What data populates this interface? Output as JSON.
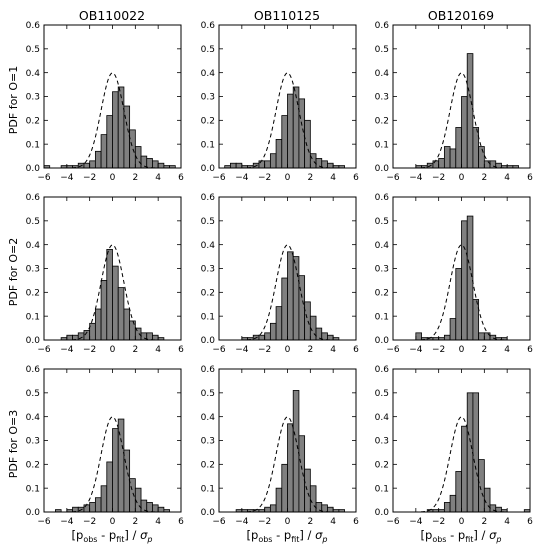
{
  "column_titles": [
    "OB110022",
    "OB110125",
    "OB120169"
  ],
  "row_labels": [
    "PDF for O=1",
    "PDF for O=2",
    "PDF for O=3"
  ],
  "x_label": {
    "prefix": "[p",
    "obs_sub": "obs",
    "mid": " - p",
    "fit_sub": "fit",
    "suffix": "] / ",
    "sigma": "σ",
    "sigma_sub": "p"
  },
  "chart_data": {
    "type": "bar",
    "layout": "3x3 grid of histograms with dashed standard normal PDF overlay",
    "xlim": [
      -6,
      6
    ],
    "ylim": [
      0,
      0.6
    ],
    "xticks": [
      -6,
      -4,
      -2,
      0,
      2,
      4,
      6
    ],
    "yticks": [
      0.0,
      0.1,
      0.2,
      0.3,
      0.4,
      0.5,
      0.6
    ],
    "bin_width": 0.5,
    "bin_start": -6,
    "overlay": "standard normal PDF (dashed)",
    "panels": [
      {
        "column": "OB110022",
        "row": "PDF for O=1",
        "values": [
          0.01,
          0,
          0,
          0.01,
          0.01,
          0.01,
          0.02,
          0.02,
          0.03,
          0.07,
          0.14,
          0.22,
          0.32,
          0.34,
          0.26,
          0.16,
          0.09,
          0.05,
          0.04,
          0.03,
          0.02,
          0.01,
          0.01,
          0
        ]
      },
      {
        "column": "OB110125",
        "row": "PDF for O=1",
        "values": [
          0,
          0.01,
          0.02,
          0.02,
          0.01,
          0.01,
          0.02,
          0.03,
          0.03,
          0.06,
          0.12,
          0.22,
          0.31,
          0.34,
          0.29,
          0.2,
          0.06,
          0.04,
          0.03,
          0.02,
          0.01,
          0.01,
          0,
          0
        ]
      },
      {
        "column": "OB120169",
        "row": "PDF for O=1",
        "values": [
          0,
          0,
          0,
          0,
          0.01,
          0.01,
          0.02,
          0.03,
          0.04,
          0.09,
          0.08,
          0.17,
          0.3,
          0.48,
          0.17,
          0.09,
          0.03,
          0.03,
          0.02,
          0.01,
          0.01,
          0.01,
          0,
          0
        ]
      },
      {
        "column": "OB110022",
        "row": "PDF for O=2",
        "values": [
          0,
          0,
          0,
          0.01,
          0.02,
          0.02,
          0.03,
          0.04,
          0.07,
          0.13,
          0.25,
          0.38,
          0.31,
          0.22,
          0.13,
          0.08,
          0.05,
          0.03,
          0.03,
          0.02,
          0.01,
          0,
          0,
          0
        ]
      },
      {
        "column": "OB110125",
        "row": "PDF for O=2",
        "values": [
          0,
          0,
          0,
          0,
          0.01,
          0.01,
          0.02,
          0.02,
          0.03,
          0.07,
          0.14,
          0.26,
          0.37,
          0.35,
          0.27,
          0.16,
          0.1,
          0.05,
          0.03,
          0.02,
          0.01,
          0,
          0,
          0
        ]
      },
      {
        "column": "OB120169",
        "row": "PDF for O=2",
        "values": [
          0,
          0,
          0,
          0,
          0.03,
          0.01,
          0.01,
          0.01,
          0.01,
          0.02,
          0.09,
          0.3,
          0.5,
          0.52,
          0.17,
          0.03,
          0.03,
          0.02,
          0.01,
          0.01,
          0,
          0,
          0,
          0
        ]
      },
      {
        "column": "OB110022",
        "row": "PDF for O=3",
        "values": [
          0,
          0,
          0.01,
          0,
          0.01,
          0.02,
          0.02,
          0.03,
          0.04,
          0.06,
          0.11,
          0.21,
          0.35,
          0.39,
          0.26,
          0.14,
          0.1,
          0.05,
          0.04,
          0.03,
          0.02,
          0.01,
          0,
          0
        ]
      },
      {
        "column": "OB110125",
        "row": "PDF for O=3",
        "values": [
          0,
          0,
          0,
          0.01,
          0.01,
          0.01,
          0.01,
          0.01,
          0.02,
          0.03,
          0.1,
          0.2,
          0.37,
          0.51,
          0.32,
          0.18,
          0.11,
          0.04,
          0.03,
          0.02,
          0.01,
          0.01,
          0,
          0
        ]
      },
      {
        "column": "OB120169",
        "row": "PDF for O=3",
        "values": [
          0,
          0,
          0,
          0,
          0,
          0,
          0.01,
          0.01,
          0.01,
          0.04,
          0.07,
          0.17,
          0.36,
          0.5,
          0.5,
          0.22,
          0.1,
          0.03,
          0.02,
          0.01,
          0,
          0,
          0,
          0.01
        ]
      }
    ]
  },
  "colors": {
    "bar_fill": "#808080",
    "bar_stroke": "#000000",
    "curve": "#000000",
    "axes": "#000000"
  }
}
